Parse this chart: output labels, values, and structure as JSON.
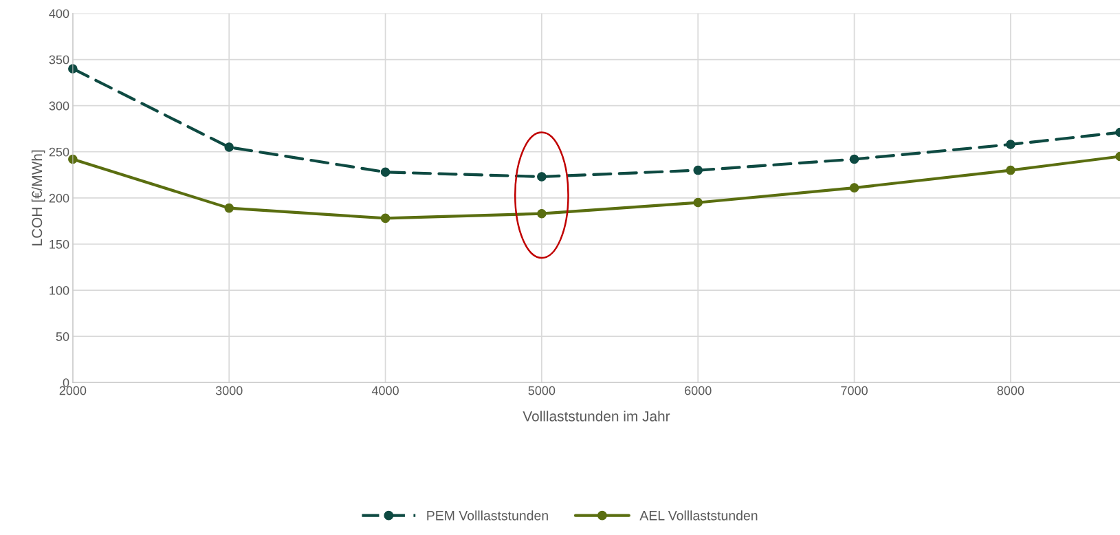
{
  "chart_data": {
    "type": "line",
    "xlabel": "Volllaststunden im Jahr",
    "ylabel": "LCOH [€/MWh]",
    "x": [
      2000,
      3000,
      4000,
      5000,
      6000,
      7000,
      8000,
      8700
    ],
    "series": [
      {
        "name": "PEM Volllaststunden",
        "color": "#0e4a42",
        "line_style": "dashed",
        "values": [
          340,
          255,
          228,
          223,
          230,
          242,
          258,
          271
        ]
      },
      {
        "name": "AEL Volllaststunden",
        "color": "#5a6e10",
        "line_style": "solid",
        "values": [
          242,
          189,
          178,
          183,
          195,
          211,
          230,
          245
        ]
      }
    ],
    "xlim": [
      2000,
      8700
    ],
    "xticks": [
      2000,
      3000,
      4000,
      5000,
      6000,
      7000,
      8000
    ],
    "ylim": [
      0,
      400
    ],
    "yticks": [
      0,
      50,
      100,
      150,
      200,
      250,
      300,
      350,
      400
    ],
    "grid": true,
    "legend": "bottom",
    "marker": "circle"
  }
}
